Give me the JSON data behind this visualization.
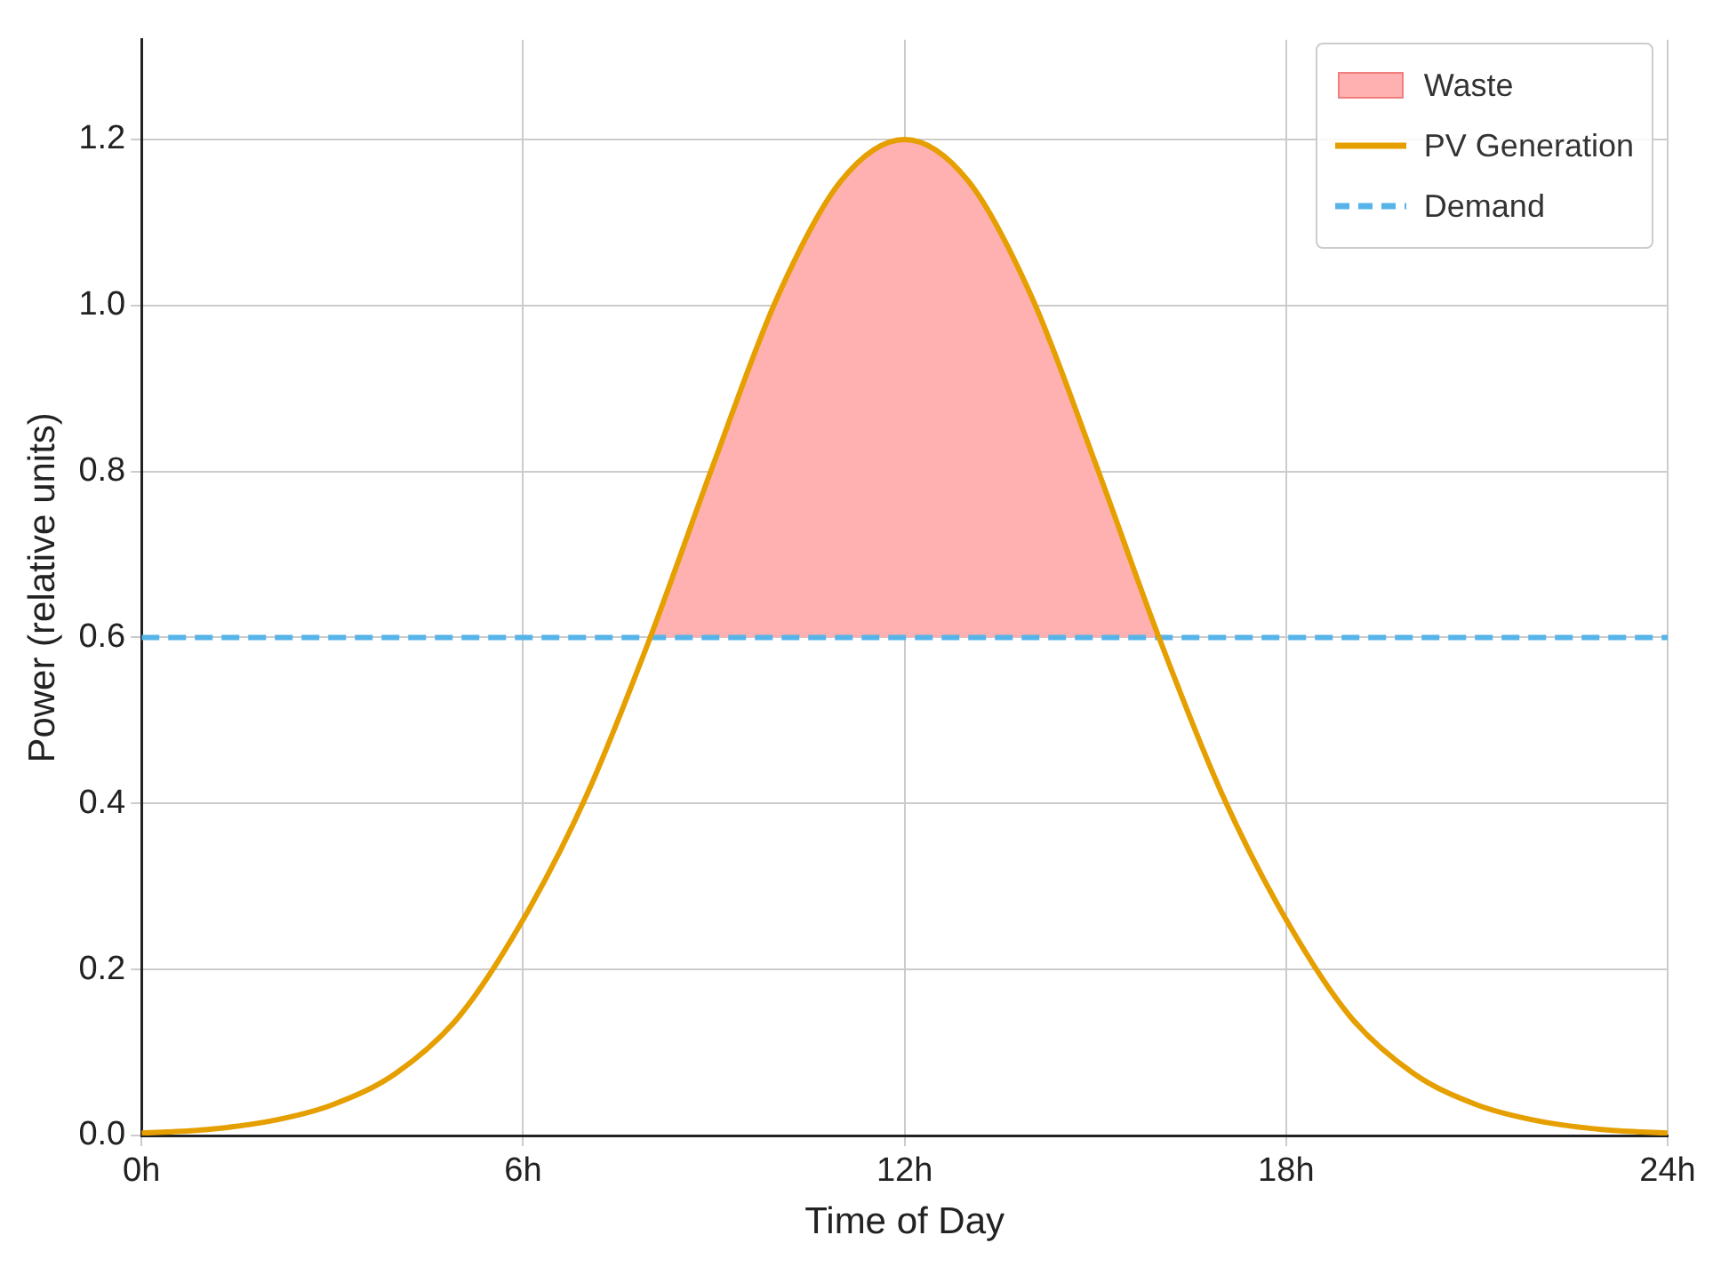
{
  "chart_data": {
    "type": "line",
    "xlabel": "Time of Day",
    "ylabel": "Power (relative units)",
    "xlim": [
      0,
      24
    ],
    "ylim": [
      0,
      1.32
    ],
    "xticks": [
      {
        "value": 0,
        "label": "0h"
      },
      {
        "value": 6,
        "label": "6h"
      },
      {
        "value": 12,
        "label": "12h"
      },
      {
        "value": 18,
        "label": "18h"
      },
      {
        "value": 24,
        "label": "24h"
      }
    ],
    "yticks": [
      {
        "value": 0,
        "label": "0.0"
      },
      {
        "value": 0.2,
        "label": "0.2"
      },
      {
        "value": 0.4,
        "label": "0.4"
      },
      {
        "value": 0.6,
        "label": "0.6"
      },
      {
        "value": 0.8,
        "label": "0.8"
      },
      {
        "value": 1,
        "label": "1.0"
      },
      {
        "value": 1.2,
        "label": "1.2"
      }
    ],
    "grid": true,
    "legend": "top right",
    "marker": "none",
    "series": [
      {
        "name": "Waste",
        "type": "area",
        "color": "#ffb0b0",
        "x": [
          8,
          9,
          10,
          11,
          12,
          13,
          14,
          15,
          16
        ],
        "values": [
          0.6,
          0.81,
          1.01,
          1.15,
          1.2,
          1.15,
          1.01,
          0.81,
          0.6
        ]
      },
      {
        "name": "PV Generation",
        "type": "line",
        "color": "#e69f00",
        "line_style": "solid",
        "x": [
          0,
          1,
          2,
          3,
          4,
          5,
          6,
          7,
          8,
          9,
          10,
          11,
          12,
          13,
          14,
          15,
          16,
          17,
          18,
          19,
          20,
          21,
          22,
          23,
          24
        ],
        "values": [
          0.003,
          0.007,
          0.017,
          0.037,
          0.075,
          0.144,
          0.26,
          0.41,
          0.6,
          0.81,
          1.01,
          1.15,
          1.2,
          1.15,
          1.01,
          0.81,
          0.6,
          0.41,
          0.26,
          0.144,
          0.075,
          0.037,
          0.017,
          0.007,
          0.003
        ]
      },
      {
        "name": "Demand",
        "type": "line",
        "color": "#56b4e9",
        "line_style": "dashed",
        "x": [
          0,
          24
        ],
        "values": [
          0.6,
          0.6
        ]
      }
    ]
  }
}
